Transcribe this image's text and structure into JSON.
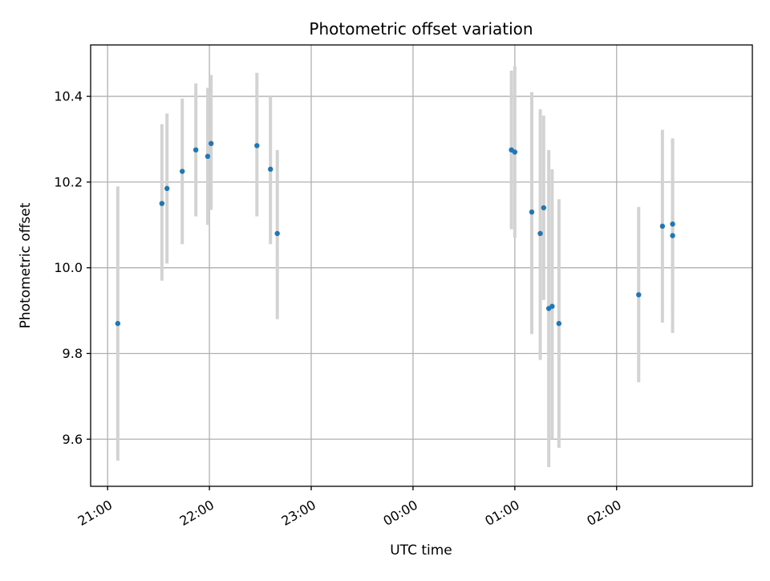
{
  "chart_data": {
    "type": "scatter",
    "title": "Photometric offset variation",
    "xlabel": "UTC time",
    "ylabel": "Photometric offset",
    "x_unit": "minutes after 21:00 UTC",
    "xlim": [
      -10,
      380
    ],
    "ylim": [
      9.49,
      10.52
    ],
    "x_ticks": [
      {
        "value": 0,
        "label": "21:00"
      },
      {
        "value": 60,
        "label": "22:00"
      },
      {
        "value": 120,
        "label": "23:00"
      },
      {
        "value": 180,
        "label": "00:00"
      },
      {
        "value": 240,
        "label": "01:00"
      },
      {
        "value": 300,
        "label": "02:00"
      }
    ],
    "y_ticks": [
      {
        "value": 9.6,
        "label": "9.6"
      },
      {
        "value": 9.8,
        "label": "9.8"
      },
      {
        "value": 10.0,
        "label": "10.0"
      },
      {
        "value": 10.2,
        "label": "10.2"
      },
      {
        "value": 10.4,
        "label": "10.4"
      }
    ],
    "grid": true,
    "colors": {
      "points": "#1f77b4",
      "errorbars": "#d3d3d3",
      "grid": "#b0b0b0"
    },
    "points": [
      {
        "x": 6,
        "y": 9.87,
        "ylo": 9.55,
        "yhi": 10.19
      },
      {
        "x": 32,
        "y": 10.15,
        "ylo": 9.97,
        "yhi": 10.335
      },
      {
        "x": 35,
        "y": 10.185,
        "ylo": 10.01,
        "yhi": 10.36
      },
      {
        "x": 44,
        "y": 10.225,
        "ylo": 10.055,
        "yhi": 10.395
      },
      {
        "x": 52,
        "y": 10.275,
        "ylo": 10.12,
        "yhi": 10.43
      },
      {
        "x": 59,
        "y": 10.26,
        "ylo": 10.1,
        "yhi": 10.42
      },
      {
        "x": 61,
        "y": 10.29,
        "ylo": 10.135,
        "yhi": 10.45
      },
      {
        "x": 88,
        "y": 10.285,
        "ylo": 10.12,
        "yhi": 10.455
      },
      {
        "x": 96,
        "y": 10.23,
        "ylo": 10.055,
        "yhi": 10.4
      },
      {
        "x": 100,
        "y": 10.08,
        "ylo": 9.88,
        "yhi": 10.275
      },
      {
        "x": 238,
        "y": 10.275,
        "ylo": 10.09,
        "yhi": 10.46
      },
      {
        "x": 240,
        "y": 10.27,
        "ylo": 10.07,
        "yhi": 10.47
      },
      {
        "x": 250,
        "y": 10.13,
        "ylo": 9.845,
        "yhi": 10.41
      },
      {
        "x": 255,
        "y": 10.08,
        "ylo": 9.785,
        "yhi": 10.37
      },
      {
        "x": 257,
        "y": 10.14,
        "ylo": 9.925,
        "yhi": 10.355
      },
      {
        "x": 260,
        "y": 9.905,
        "ylo": 9.535,
        "yhi": 10.275
      },
      {
        "x": 262,
        "y": 9.91,
        "ylo": 9.6,
        "yhi": 10.23
      },
      {
        "x": 266,
        "y": 9.87,
        "ylo": 9.58,
        "yhi": 10.16
      },
      {
        "x": 313,
        "y": 9.937,
        "ylo": 9.733,
        "yhi": 10.142
      },
      {
        "x": 327,
        "y": 10.097,
        "ylo": 9.872,
        "yhi": 10.322
      },
      {
        "x": 333,
        "y": 10.102,
        "ylo": 9.902,
        "yhi": 10.302
      },
      {
        "x": 333,
        "y": 10.075,
        "ylo": 9.848,
        "yhi": 10.3
      }
    ]
  }
}
